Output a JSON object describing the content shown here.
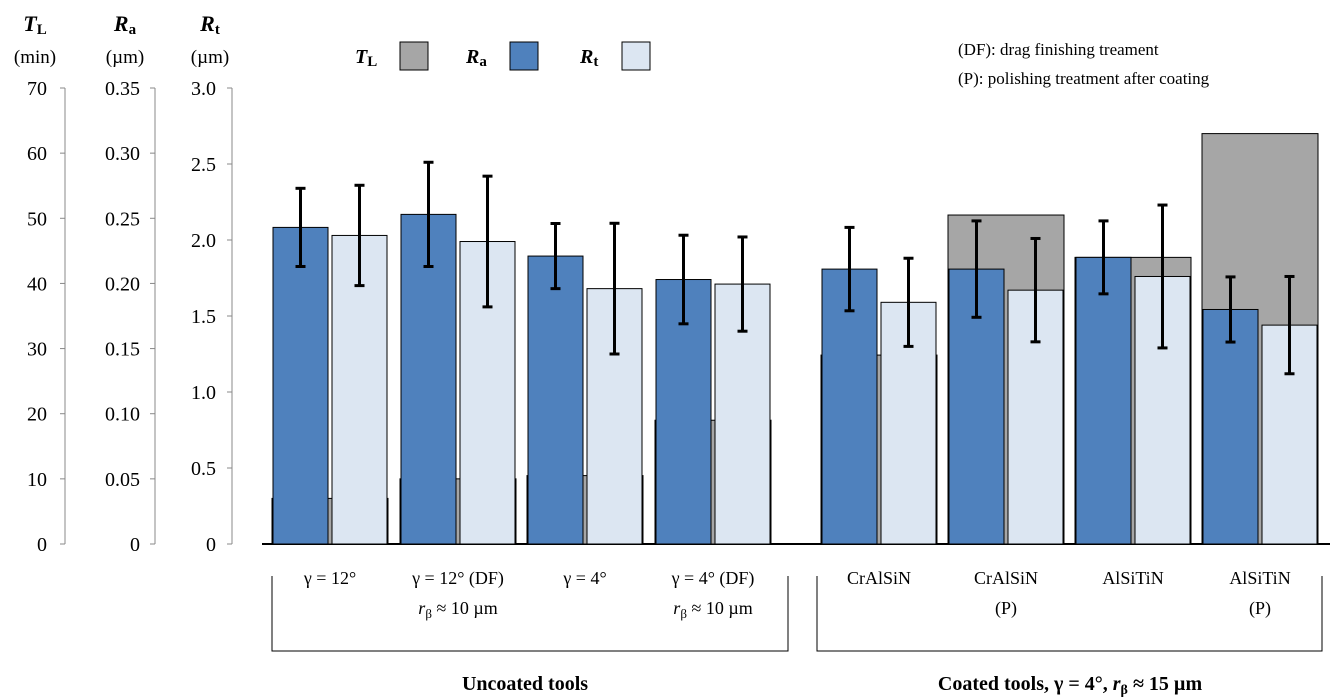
{
  "chart_data": {
    "type": "bar",
    "axes": [
      {
        "symbol": "T",
        "sub": "L",
        "unit": "(min)",
        "ylim": [
          0,
          70
        ],
        "ticks": [
          "0",
          "10",
          "20",
          "30",
          "40",
          "50",
          "60",
          "70"
        ]
      },
      {
        "symbol": "R",
        "sub": "a",
        "unit": "(µm)",
        "ylim": [
          0,
          0.35
        ],
        "ticks": [
          "0",
          "0.05",
          "0.10",
          "0.15",
          "0.20",
          "0.25",
          "0.30",
          "0.35"
        ]
      },
      {
        "symbol": "R",
        "sub": "t",
        "unit": "(µm)",
        "ylim": [
          0,
          3.0
        ],
        "ticks": [
          "0",
          "0.5",
          "1.0",
          "1.5",
          "2.0",
          "2.5",
          "3.0"
        ]
      }
    ],
    "categories": [
      {
        "line1": "γ = 12°",
        "line2": ""
      },
      {
        "line1": "γ = 12° (DF)",
        "line2": "rβ ≈ 10 µm"
      },
      {
        "line1": "γ = 4°",
        "line2": ""
      },
      {
        "line1": "γ = 4° (DF)",
        "line2": "rβ ≈ 10 µm"
      },
      {
        "line1": "CrAlSiN",
        "line2": ""
      },
      {
        "line1": "CrAlSiN",
        "line2": "(P)"
      },
      {
        "line1": "AlSiTiN",
        "line2": ""
      },
      {
        "line1": "AlSiTiN",
        "line2": "(P)"
      }
    ],
    "series": [
      {
        "name": "TL",
        "color": "#a6a6a6",
        "values": [
          7,
          10,
          10.5,
          19,
          29,
          50.5,
          44,
          63
        ]
      },
      {
        "name": "Ra",
        "color": "#4f81bd",
        "values": [
          0.243,
          0.253,
          0.221,
          0.203,
          0.211,
          0.211,
          0.22,
          0.18
        ],
        "err": [
          0.03,
          0.04,
          0.025,
          0.034,
          0.032,
          0.037,
          0.028,
          0.025
        ]
      },
      {
        "name": "Rt",
        "color": "#dce6f2",
        "values": [
          2.03,
          1.99,
          1.68,
          1.71,
          1.59,
          1.67,
          1.76,
          1.44
        ],
        "err": [
          0.33,
          0.43,
          0.43,
          0.31,
          0.29,
          0.34,
          0.47,
          0.32
        ]
      }
    ],
    "groups": [
      "Uncoated tools",
      "Coated tools, γ = 4°, rβ ≈ 15 µm"
    ],
    "legend_position": "top-left",
    "notes": [
      "(DF): drag finishing treament",
      "(P): polishing treatment after coating"
    ],
    "grid": false
  }
}
